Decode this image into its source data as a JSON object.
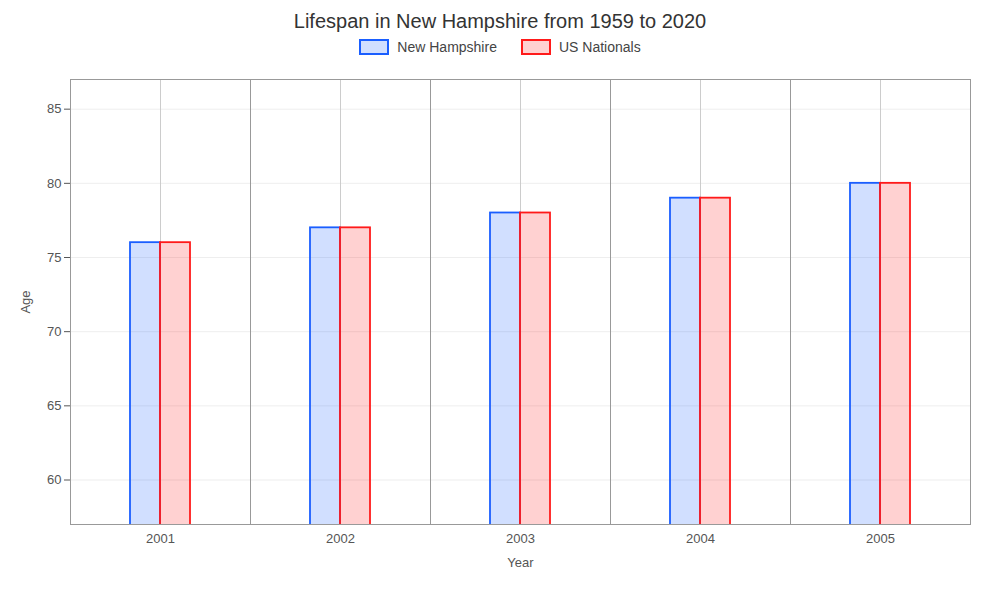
{
  "chart_data": {
    "type": "bar",
    "title": "Lifespan in New Hampshire from 1959 to 2020",
    "xlabel": "Year",
    "ylabel": "Age",
    "categories": [
      "2001",
      "2002",
      "2003",
      "2004",
      "2005"
    ],
    "series": [
      {
        "name": "New Hampshire",
        "color": "#1a5eff",
        "values": [
          76,
          77,
          78,
          79,
          80
        ]
      },
      {
        "name": "US Nationals",
        "color": "#ff1a1a",
        "values": [
          76,
          77,
          78,
          79,
          80
        ]
      }
    ],
    "ylim": [
      57,
      87
    ],
    "yticks": [
      60,
      65,
      70,
      75,
      80,
      85
    ],
    "grid": true,
    "legend": "top"
  }
}
